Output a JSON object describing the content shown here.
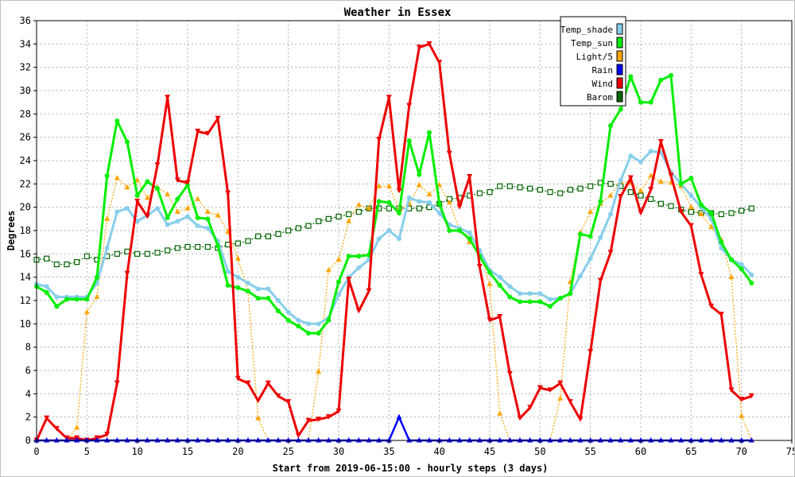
{
  "chart_data": {
    "type": "line",
    "title": "Weather in Essex",
    "xlabel": "Start from 2019-06-15:00 - hourly steps (3 days)",
    "ylabel": "Degrees",
    "xlim": [
      0,
      75
    ],
    "ylim": [
      0,
      36
    ],
    "xticks": [
      0,
      5,
      10,
      15,
      20,
      25,
      30,
      35,
      40,
      45,
      50,
      55,
      60,
      65,
      70,
      75
    ],
    "yticks": [
      0,
      2,
      4,
      6,
      8,
      10,
      12,
      14,
      16,
      18,
      20,
      22,
      24,
      26,
      28,
      30,
      32,
      34,
      36
    ],
    "grid": true,
    "legend_position": "top-right",
    "x": [
      0,
      1,
      2,
      3,
      4,
      5,
      6,
      7,
      8,
      9,
      10,
      11,
      12,
      13,
      14,
      15,
      16,
      17,
      18,
      19,
      20,
      21,
      22,
      23,
      24,
      25,
      26,
      27,
      28,
      29,
      30,
      31,
      32,
      33,
      34,
      35,
      36,
      37,
      38,
      39,
      40,
      41,
      42,
      43,
      44,
      45,
      46,
      47,
      48,
      49,
      50,
      51,
      52,
      53,
      54,
      55,
      56,
      57,
      58,
      59,
      60,
      61,
      62,
      63,
      64,
      65,
      66,
      67,
      68,
      69,
      70,
      71
    ],
    "series": [
      {
        "name": "Temp_shade",
        "color": "#87ceeb",
        "values": [
          13.4,
          13.2,
          12.3,
          12.3,
          12.3,
          12.3,
          13.5,
          16.5,
          19.6,
          19.9,
          18.8,
          19.3,
          19.9,
          18.5,
          18.8,
          19.2,
          18.4,
          18.2,
          17.1,
          14.5,
          14.0,
          13.5,
          13.0,
          13.0,
          12.0,
          11.0,
          10.3,
          10.0,
          10.0,
          10.5,
          12.5,
          14.0,
          14.8,
          15.5,
          17.3,
          18.0,
          17.3,
          20.8,
          20.5,
          20.4,
          19.5,
          18.5,
          18.2,
          17.8,
          16.3,
          14.6,
          14.0,
          13.2,
          12.6,
          12.6,
          12.6,
          12.1,
          12.2,
          12.6,
          14.1,
          15.6,
          17.4,
          19.4,
          22.3,
          24.4,
          23.9,
          24.8,
          24.7,
          23.0,
          22.0,
          21.0,
          20.0,
          19.0,
          16.5,
          15.5,
          15.1,
          14.2
        ]
      },
      {
        "name": "Temp_sun",
        "color": "#00ee00",
        "values": [
          13.2,
          12.7,
          11.5,
          12.1,
          12.1,
          12.1,
          14.0,
          22.7,
          27.4,
          25.6,
          21.0,
          22.2,
          21.6,
          19.1,
          20.7,
          21.9,
          19.1,
          19.0,
          16.7,
          13.3,
          13.1,
          12.8,
          12.2,
          12.2,
          11.1,
          10.3,
          9.8,
          9.2,
          9.2,
          10.3,
          13.6,
          15.8,
          15.8,
          15.9,
          20.5,
          20.4,
          19.5,
          25.7,
          22.8,
          26.4,
          20.3,
          18.0,
          18.0,
          17.3,
          15.8,
          14.4,
          13.3,
          12.3,
          11.9,
          11.9,
          11.9,
          11.5,
          12.2,
          12.6,
          17.7,
          17.5,
          20.5,
          27.0,
          28.4,
          31.2,
          29.0,
          29.0,
          30.9,
          31.3,
          22.0,
          22.5,
          20.2,
          19.5,
          17.0,
          15.5,
          14.7,
          13.5
        ]
      },
      {
        "name": "Light/5",
        "color": "#ffa500",
        "values": [
          0,
          0,
          0,
          0,
          1.1,
          11.0,
          12.3,
          19.0,
          22.5,
          21.7,
          22.3,
          20.8,
          21.7,
          21.1,
          19.6,
          19.9,
          20.7,
          19.6,
          19.3,
          17.9,
          15.6,
          12.8,
          1.9,
          0,
          0,
          0,
          0,
          0,
          5.9,
          14.6,
          15.5,
          18.8,
          20.2,
          19.9,
          21.8,
          21.8,
          19.8,
          20.3,
          21.9,
          21.1,
          21.9,
          20.4,
          18.1,
          17.0,
          16.2,
          13.4,
          2.3,
          0,
          0,
          0,
          0,
          0,
          3.6,
          13.6,
          17.8,
          19.6,
          20.3,
          21.0,
          22.2,
          22.1,
          21.4,
          22.7,
          22.2,
          22.1,
          21.8,
          20.0,
          19.4,
          18.3,
          17.2,
          14.0,
          2.1,
          0
        ]
      },
      {
        "name": "Rain",
        "color": "#0000ff",
        "values": [
          0,
          0,
          0,
          0,
          0,
          0,
          0,
          0,
          0,
          0,
          0,
          0,
          0,
          0,
          0,
          0,
          0,
          0,
          0,
          0,
          0,
          0,
          0,
          0,
          0,
          0,
          0,
          0,
          0,
          0,
          0,
          0,
          0,
          0,
          0,
          0,
          2,
          0,
          0,
          0,
          0,
          0,
          0,
          0,
          0,
          0,
          0,
          0,
          0,
          0,
          0,
          0,
          0,
          0,
          0,
          0,
          0,
          0,
          0,
          0,
          0,
          0,
          0,
          0,
          0,
          0,
          0,
          0,
          0,
          0,
          0,
          0
        ]
      },
      {
        "name": "Wind",
        "color": "#ee0000",
        "values": [
          0,
          1.9,
          1.0,
          0.2,
          0.2,
          0,
          0.2,
          0.5,
          4.9,
          14.3,
          20.5,
          19.2,
          23.6,
          29.4,
          22.3,
          22.1,
          26.5,
          26.3,
          27.6,
          21.2,
          5.3,
          4.9,
          3.4,
          4.9,
          3.8,
          3.3,
          0.4,
          1.7,
          1.8,
          2.0,
          2.5,
          13.8,
          11.1,
          12.8,
          25.8,
          29.4,
          21.4,
          28.7,
          33.7,
          34.0,
          32.4,
          24.6,
          20.0,
          22.6,
          14.9,
          10.3,
          10.6,
          5.7,
          1.9,
          2.8,
          4.5,
          4.3,
          4.9,
          3.3,
          1.8,
          7.6,
          13.7,
          16.1,
          20.9,
          22.5,
          19.5,
          21.5,
          25.6,
          22.7,
          19.6,
          18.4,
          14.2,
          11.5,
          10.8,
          4.3,
          3.5,
          3.8
        ]
      },
      {
        "name": "Barom",
        "color": "#006400",
        "values": [
          15.5,
          15.6,
          15.1,
          15.1,
          15.3,
          15.8,
          15.5,
          15.8,
          16.0,
          16.2,
          16.0,
          16.0,
          16.1,
          16.3,
          16.5,
          16.6,
          16.6,
          16.6,
          16.5,
          16.8,
          16.9,
          17.1,
          17.5,
          17.5,
          17.7,
          18.0,
          18.2,
          18.4,
          18.8,
          19.0,
          19.2,
          19.4,
          19.6,
          19.9,
          19.9,
          19.9,
          19.9,
          19.9,
          19.9,
          20.0,
          20.3,
          20.7,
          20.8,
          21.0,
          21.2,
          21.3,
          21.8,
          21.8,
          21.7,
          21.6,
          21.5,
          21.3,
          21.2,
          21.5,
          21.6,
          21.8,
          22.1,
          22.0,
          21.8,
          21.3,
          21.0,
          20.7,
          20.3,
          20.1,
          19.8,
          19.6,
          19.5,
          19.5,
          19.4,
          19.5,
          19.7,
          19.9
        ]
      }
    ]
  }
}
